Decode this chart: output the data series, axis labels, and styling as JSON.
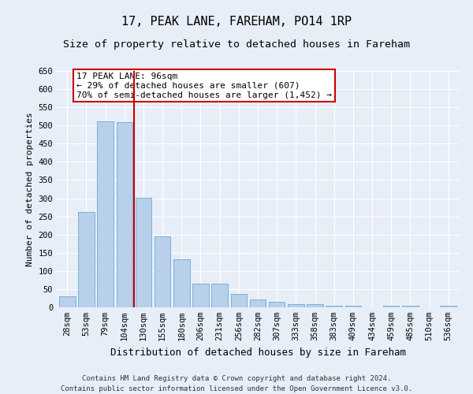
{
  "title1": "17, PEAK LANE, FAREHAM, PO14 1RP",
  "title2": "Size of property relative to detached houses in Fareham",
  "xlabel": "Distribution of detached houses by size in Fareham",
  "ylabel": "Number of detached properties",
  "categories": [
    "28sqm",
    "53sqm",
    "79sqm",
    "104sqm",
    "130sqm",
    "155sqm",
    "180sqm",
    "206sqm",
    "231sqm",
    "256sqm",
    "282sqm",
    "307sqm",
    "333sqm",
    "358sqm",
    "383sqm",
    "409sqm",
    "434sqm",
    "459sqm",
    "485sqm",
    "510sqm",
    "536sqm"
  ],
  "values": [
    30,
    263,
    511,
    509,
    301,
    196,
    132,
    65,
    65,
    37,
    22,
    16,
    9,
    8,
    5,
    5,
    0,
    5,
    5,
    0,
    5
  ],
  "bar_color": "#b8d0ea",
  "bar_edgecolor": "#6aaad4",
  "vline_x": 3.5,
  "vline_color": "#cc0000",
  "annotation_text": "17 PEAK LANE: 96sqm\n← 29% of detached houses are smaller (607)\n70% of semi-detached houses are larger (1,452) →",
  "annotation_box_facecolor": "#ffffff",
  "annotation_box_edgecolor": "#cc0000",
  "ylim": [
    0,
    650
  ],
  "yticks": [
    0,
    50,
    100,
    150,
    200,
    250,
    300,
    350,
    400,
    450,
    500,
    550,
    600,
    650
  ],
  "footnote": "Contains HM Land Registry data © Crown copyright and database right 2024.\nContains public sector information licensed under the Open Government Licence v3.0.",
  "bg_color": "#e8eef8",
  "grid_color": "#ffffff",
  "title1_fontsize": 11,
  "title2_fontsize": 9.5,
  "xlabel_fontsize": 9,
  "ylabel_fontsize": 8,
  "tick_fontsize": 7.5,
  "footnote_fontsize": 6.5,
  "annotation_fontsize": 8
}
